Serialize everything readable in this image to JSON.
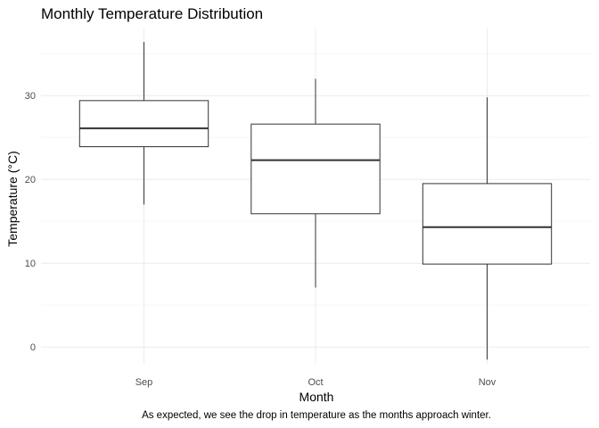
{
  "chart_data": {
    "type": "boxplot",
    "title": "Monthly Temperature Distribution",
    "xlabel": "Month",
    "ylabel": "Temperature (°C)",
    "caption": "As expected, we see the drop in temperature as the months approach winter.",
    "categories": [
      "Sep",
      "Oct",
      "Nov"
    ],
    "boxes": [
      {
        "category": "Sep",
        "min": 17.0,
        "q1": 23.9,
        "median": 26.1,
        "q3": 29.4,
        "max": 36.4
      },
      {
        "category": "Oct",
        "min": 7.1,
        "q1": 15.9,
        "median": 22.3,
        "q3": 26.6,
        "max": 32.0
      },
      {
        "category": "Nov",
        "min": -1.5,
        "q1": 9.9,
        "median": 14.3,
        "q3": 19.5,
        "max": 29.8
      }
    ],
    "ylim": [
      -2,
      38
    ],
    "yticks": [
      0,
      10,
      20,
      30
    ],
    "grid": true,
    "colors": {
      "background": "#ffffff",
      "grid_major": "#ebebeb",
      "grid_minor": "#f5f5f5",
      "box_stroke": "#333333",
      "tick_text": "#4d4d4d"
    }
  }
}
